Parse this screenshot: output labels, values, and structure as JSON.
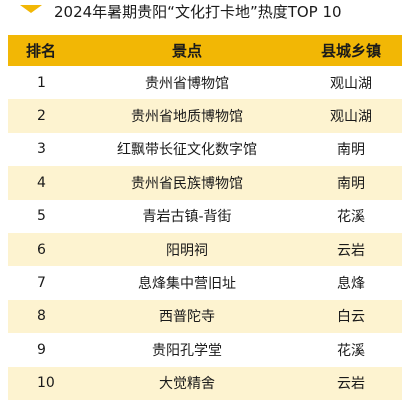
{
  "title": "2024年暑期贵阳“文化打卡地”热度TOP 10",
  "colors": {
    "accent": "#f2b705",
    "row_alt": "#fdf3d0"
  },
  "table": {
    "headers": [
      "排名",
      "景点",
      "县城乡镇"
    ],
    "rows": [
      {
        "rank": "1",
        "spot": "贵州省博物馆",
        "area": "观山湖"
      },
      {
        "rank": "2",
        "spot": "贵州省地质博物馆",
        "area": "观山湖"
      },
      {
        "rank": "3",
        "spot": "红飘带长征文化数字馆",
        "area": "南明"
      },
      {
        "rank": "4",
        "spot": "贵州省民族博物馆",
        "area": "南明"
      },
      {
        "rank": "5",
        "spot": "青岩古镇-背街",
        "area": "花溪"
      },
      {
        "rank": "6",
        "spot": "阳明祠",
        "area": "云岩"
      },
      {
        "rank": "7",
        "spot": "息烽集中营旧址",
        "area": "息烽"
      },
      {
        "rank": "8",
        "spot": "西普陀寺",
        "area": "白云"
      },
      {
        "rank": "9",
        "spot": "贵阳孔学堂",
        "area": "花溪"
      },
      {
        "rank": "10",
        "spot": "大觉精舍",
        "area": "云岩"
      }
    ]
  }
}
